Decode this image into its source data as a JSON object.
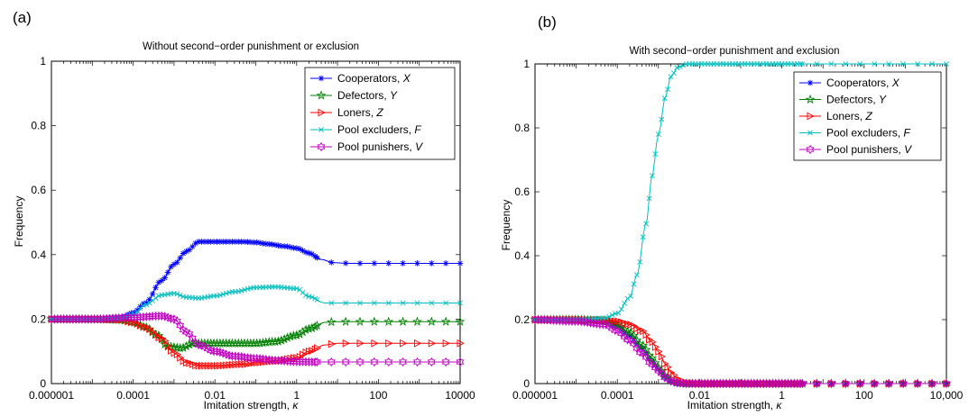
{
  "chart_data": [
    {
      "panel_label": "(a)",
      "type": "line",
      "title": "Without second−order punishment or exclusion",
      "xlabel": "Imitation strength, ",
      "xlabel_symbol": "κ",
      "ylabel": "Frequency",
      "x_scale": "log",
      "xlim": [
        1e-06,
        10000
      ],
      "ylim": [
        0,
        1
      ],
      "x_tick_values": [
        1e-06,
        0.0001,
        0.01,
        1,
        100,
        10000
      ],
      "x_tick_labels": [
        "0.000001",
        "0.0001",
        "0.01",
        "1",
        "100",
        "10000"
      ],
      "y_tick_values": [
        0,
        0.2,
        0.4,
        0.6,
        0.8,
        1
      ],
      "y_tick_labels": [
        "0",
        "0.2",
        "0.4",
        "0.6",
        "0.8",
        "1"
      ],
      "legend_position": "top-right",
      "grid": false,
      "series": [
        {
          "name": "Cooperators, ",
          "symbol": "X",
          "color": "#0000ff",
          "marker": "star",
          "points": [
            [
              1e-06,
              0.2
            ],
            [
              1e-05,
              0.2
            ],
            [
              5e-05,
              0.205
            ],
            [
              0.0001,
              0.22
            ],
            [
              0.0002,
              0.25
            ],
            [
              0.0005,
              0.32
            ],
            [
              0.001,
              0.37
            ],
            [
              0.002,
              0.41
            ],
            [
              0.004,
              0.44
            ],
            [
              0.01,
              0.44
            ],
            [
              0.02,
              0.44
            ],
            [
              0.05,
              0.44
            ],
            [
              0.1,
              0.438
            ],
            [
              0.2,
              0.433
            ],
            [
              0.5,
              0.426
            ],
            [
              1,
              0.42
            ],
            [
              2,
              0.405
            ],
            [
              4,
              0.385
            ],
            [
              8,
              0.375
            ],
            [
              20,
              0.373
            ],
            [
              100,
              0.373
            ],
            [
              1000,
              0.373
            ],
            [
              10000,
              0.373
            ]
          ]
        },
        {
          "name": "Defectors, ",
          "symbol": "Y",
          "color": "#008000",
          "marker": "pentagram",
          "points": [
            [
              1e-06,
              0.2
            ],
            [
              1e-05,
              0.2
            ],
            [
              5e-05,
              0.198
            ],
            [
              0.0001,
              0.19
            ],
            [
              0.0002,
              0.175
            ],
            [
              0.0004,
              0.15
            ],
            [
              0.0007,
              0.115
            ],
            [
              0.0015,
              0.11
            ],
            [
              0.003,
              0.125
            ],
            [
              0.01,
              0.125
            ],
            [
              0.05,
              0.125
            ],
            [
              0.1,
              0.125
            ],
            [
              0.3,
              0.13
            ],
            [
              1,
              0.15
            ],
            [
              2,
              0.17
            ],
            [
              5,
              0.19
            ],
            [
              10,
              0.192
            ],
            [
              100,
              0.192
            ],
            [
              10000,
              0.192
            ]
          ]
        },
        {
          "name": "Loners, ",
          "symbol": "Z",
          "color": "#ff0000",
          "marker": "triangle-right",
          "points": [
            [
              1e-06,
              0.2
            ],
            [
              1e-05,
              0.2
            ],
            [
              5e-05,
              0.198
            ],
            [
              0.0001,
              0.19
            ],
            [
              0.0002,
              0.175
            ],
            [
              0.0005,
              0.14
            ],
            [
              0.001,
              0.095
            ],
            [
              0.002,
              0.065
            ],
            [
              0.004,
              0.055
            ],
            [
              0.01,
              0.055
            ],
            [
              0.05,
              0.06
            ],
            [
              0.1,
              0.065
            ],
            [
              0.3,
              0.07
            ],
            [
              1,
              0.08
            ],
            [
              2,
              0.1
            ],
            [
              5,
              0.12
            ],
            [
              10,
              0.125
            ],
            [
              100,
              0.125
            ],
            [
              10000,
              0.125
            ]
          ]
        },
        {
          "name": "Pool excluders, ",
          "symbol": "F",
          "color": "#00bfbf",
          "marker": "x",
          "points": [
            [
              1e-06,
              0.2
            ],
            [
              1e-05,
              0.2
            ],
            [
              5e-05,
              0.203
            ],
            [
              0.0001,
              0.215
            ],
            [
              0.0002,
              0.245
            ],
            [
              0.0005,
              0.275
            ],
            [
              0.001,
              0.28
            ],
            [
              0.002,
              0.268
            ],
            [
              0.004,
              0.265
            ],
            [
              0.01,
              0.272
            ],
            [
              0.03,
              0.285
            ],
            [
              0.1,
              0.298
            ],
            [
              0.3,
              0.3
            ],
            [
              1,
              0.295
            ],
            [
              2,
              0.27
            ],
            [
              5,
              0.25
            ],
            [
              10,
              0.25
            ],
            [
              100,
              0.25
            ],
            [
              10000,
              0.25
            ]
          ]
        },
        {
          "name": "Pool punishers, ",
          "symbol": "V",
          "color": "#bf00bf",
          "marker": "hexagram",
          "points": [
            [
              1e-06,
              0.2
            ],
            [
              1e-05,
              0.2
            ],
            [
              0.0001,
              0.205
            ],
            [
              0.0005,
              0.21
            ],
            [
              0.001,
              0.2
            ],
            [
              0.002,
              0.16
            ],
            [
              0.004,
              0.12
            ],
            [
              0.01,
              0.1
            ],
            [
              0.03,
              0.085
            ],
            [
              0.1,
              0.078
            ],
            [
              0.3,
              0.072
            ],
            [
              1,
              0.068
            ],
            [
              3,
              0.067
            ],
            [
              10,
              0.067
            ],
            [
              100,
              0.067
            ],
            [
              10000,
              0.067
            ]
          ]
        }
      ]
    },
    {
      "panel_label": "(b)",
      "type": "line",
      "title": "With second−order punishment and exclusion",
      "xlabel": "Imitation strength, ",
      "xlabel_symbol": "κ",
      "ylabel": "Frequency",
      "x_scale": "log",
      "xlim": [
        1e-06,
        10000
      ],
      "ylim": [
        0,
        1
      ],
      "x_tick_values": [
        1e-06,
        0.0001,
        0.01,
        1,
        100,
        10000
      ],
      "x_tick_labels": [
        "0.000001",
        "0.0001",
        "0.01",
        "1",
        "100",
        "10,000"
      ],
      "y_tick_values": [
        0,
        0.2,
        0.4,
        0.6,
        0.8,
        1
      ],
      "y_tick_labels": [
        "0",
        "0.2",
        "0.4",
        "0.6",
        "0.8",
        "1"
      ],
      "legend_position": "top-right",
      "grid": false,
      "series": [
        {
          "name": "Cooperators, ",
          "symbol": "X",
          "color": "#0000ff",
          "marker": "star",
          "points": [
            [
              1e-06,
              0.2
            ],
            [
              1e-05,
              0.2
            ],
            [
              5e-05,
              0.195
            ],
            [
              0.0001,
              0.18
            ],
            [
              0.0002,
              0.15
            ],
            [
              0.0004,
              0.11
            ],
            [
              0.0007,
              0.07
            ],
            [
              0.001,
              0.045
            ],
            [
              0.0015,
              0.02
            ],
            [
              0.002,
              0.008
            ],
            [
              0.003,
              0.002
            ],
            [
              0.005,
              0
            ],
            [
              0.1,
              0
            ],
            [
              10000,
              0
            ]
          ]
        },
        {
          "name": "Defectors, ",
          "symbol": "Y",
          "color": "#008000",
          "marker": "pentagram",
          "points": [
            [
              1e-06,
              0.2
            ],
            [
              1e-05,
              0.2
            ],
            [
              5e-05,
              0.196
            ],
            [
              0.0001,
              0.185
            ],
            [
              0.0002,
              0.16
            ],
            [
              0.0004,
              0.12
            ],
            [
              0.0007,
              0.08
            ],
            [
              0.001,
              0.05
            ],
            [
              0.0015,
              0.025
            ],
            [
              0.002,
              0.01
            ],
            [
              0.003,
              0.002
            ],
            [
              0.005,
              0
            ],
            [
              0.1,
              0
            ],
            [
              10000,
              0
            ]
          ]
        },
        {
          "name": "Loners, ",
          "symbol": "Z",
          "color": "#ff0000",
          "marker": "triangle-right",
          "points": [
            [
              1e-06,
              0.2
            ],
            [
              1e-05,
              0.2
            ],
            [
              5e-05,
              0.198
            ],
            [
              0.0001,
              0.195
            ],
            [
              0.0002,
              0.185
            ],
            [
              0.0004,
              0.165
            ],
            [
              0.0007,
              0.13
            ],
            [
              0.001,
              0.1
            ],
            [
              0.0015,
              0.06
            ],
            [
              0.002,
              0.035
            ],
            [
              0.003,
              0.012
            ],
            [
              0.005,
              0.002
            ],
            [
              0.01,
              0
            ],
            [
              10000,
              0
            ]
          ]
        },
        {
          "name": "Pool excluders, ",
          "symbol": "F",
          "color": "#00bfbf",
          "marker": "x",
          "points": [
            [
              1e-06,
              0.2
            ],
            [
              1e-05,
              0.2
            ],
            [
              5e-05,
              0.205
            ],
            [
              0.0001,
              0.22
            ],
            [
              0.0002,
              0.27
            ],
            [
              0.0003,
              0.34
            ],
            [
              0.0005,
              0.5
            ],
            [
              0.0007,
              0.65
            ],
            [
              0.001,
              0.78
            ],
            [
              0.0015,
              0.9
            ],
            [
              0.002,
              0.96
            ],
            [
              0.003,
              0.99
            ],
            [
              0.005,
              1
            ],
            [
              0.1,
              1
            ],
            [
              10000,
              1
            ]
          ]
        },
        {
          "name": "Pool punishers, ",
          "symbol": "V",
          "color": "#bf00bf",
          "marker": "hexagram",
          "points": [
            [
              1e-06,
              0.2
            ],
            [
              1e-05,
              0.195
            ],
            [
              5e-05,
              0.185
            ],
            [
              0.0001,
              0.165
            ],
            [
              0.0002,
              0.135
            ],
            [
              0.0004,
              0.095
            ],
            [
              0.0007,
              0.06
            ],
            [
              0.001,
              0.04
            ],
            [
              0.0015,
              0.018
            ],
            [
              0.002,
              0.008
            ],
            [
              0.003,
              0.002
            ],
            [
              0.005,
              0
            ],
            [
              0.1,
              0
            ],
            [
              10000,
              0
            ]
          ]
        }
      ]
    }
  ]
}
